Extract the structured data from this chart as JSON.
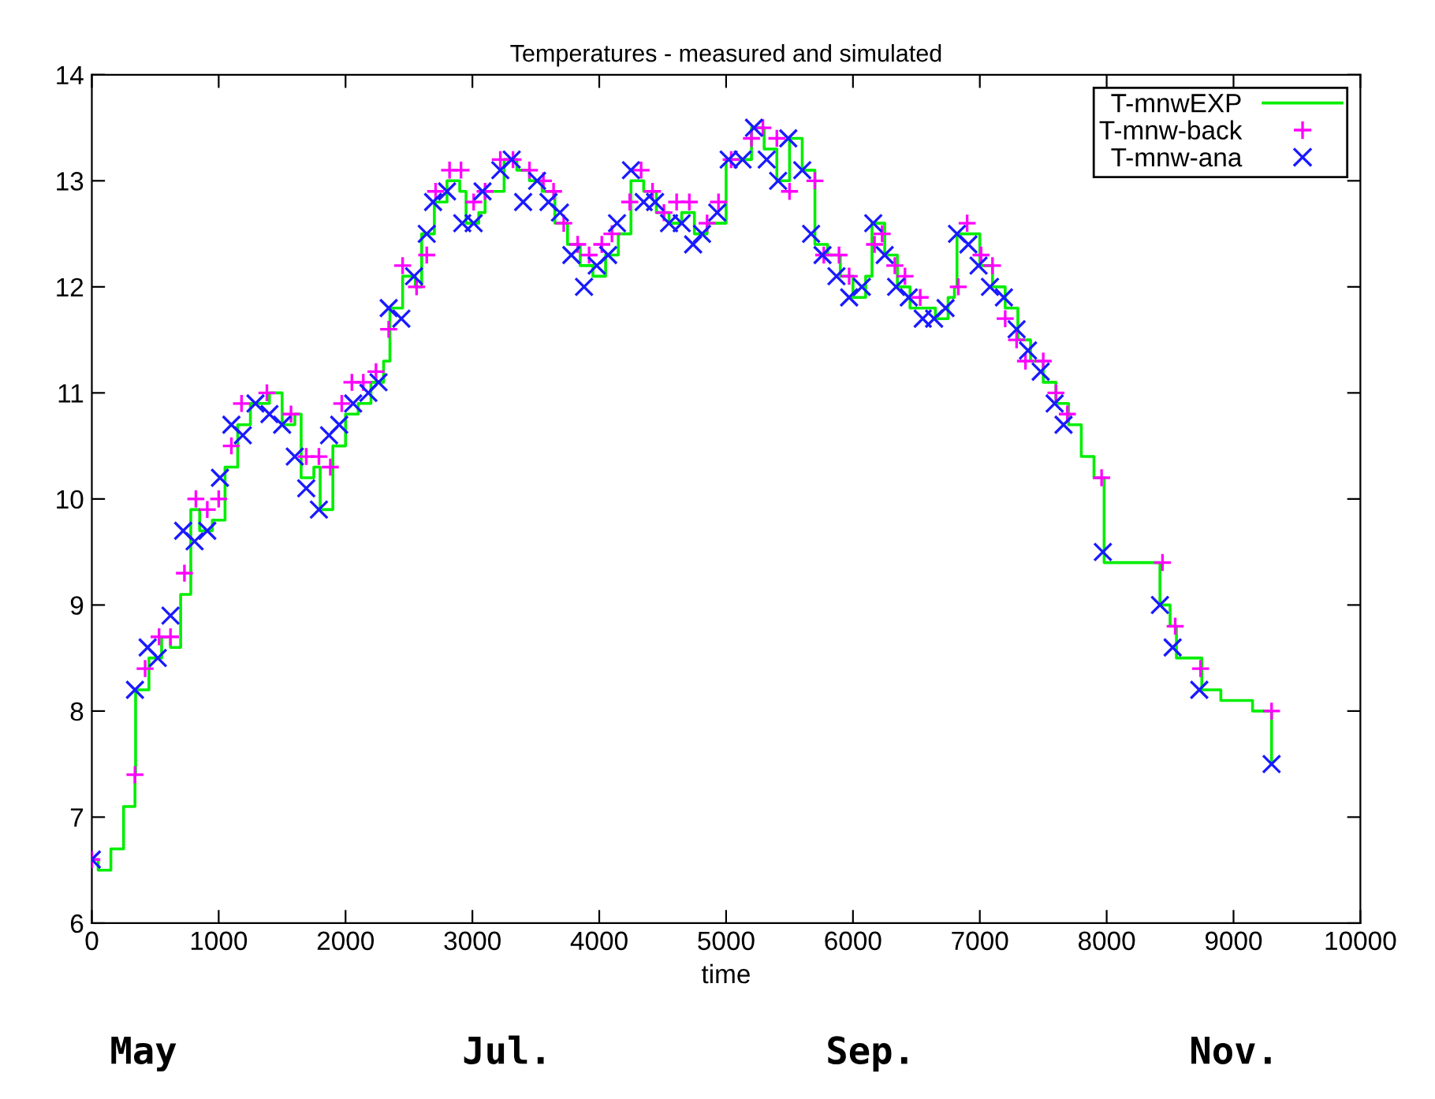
{
  "chart_data": {
    "type": "line",
    "title": "Temperatures - measured and simulated",
    "xlabel": "time",
    "xlim": [
      0,
      10000
    ],
    "xticks": [
      0,
      1000,
      2000,
      3000,
      4000,
      5000,
      6000,
      7000,
      8000,
      9000,
      10000
    ],
    "ylim": [
      6,
      14
    ],
    "yticks": [
      6,
      7,
      8,
      9,
      10,
      11,
      12,
      13,
      14
    ],
    "grid": false,
    "legend": "top right",
    "annotations": [
      "May",
      "Jul.",
      "Sep.",
      "Nov."
    ],
    "series": [
      {
        "name": "T-mnwEXP",
        "type": "step",
        "color": "#00ee00",
        "marker": "none",
        "x": [
          0,
          50,
          100,
          150,
          250,
          340,
          345,
          450,
          550,
          620,
          700,
          780,
          850,
          950,
          1050,
          1150,
          1250,
          1400,
          1500,
          1600,
          1650,
          1750,
          1800,
          1900,
          2000,
          2100,
          2200,
          2300,
          2350,
          2450,
          2550,
          2600,
          2700,
          2800,
          2900,
          2950,
          3050,
          3100,
          3250,
          3350,
          3450,
          3550,
          3650,
          3750,
          3850,
          3950,
          4050,
          4150,
          4250,
          4350,
          4450,
          4550,
          4650,
          4750,
          4850,
          4950,
          5000,
          5150,
          5200,
          5300,
          5400,
          5500,
          5600,
          5700,
          5800,
          5900,
          6000,
          6100,
          6150,
          6250,
          6350,
          6450,
          6550,
          6650,
          6750,
          6800,
          6820,
          6900,
          7000,
          7100,
          7200,
          7300,
          7400,
          7500,
          7600,
          7700,
          7800,
          7900,
          7970,
          7980,
          8200,
          8400,
          8420,
          8500,
          8550,
          8700,
          8750,
          8900,
          9100,
          9150,
          9300,
          9300
        ],
        "values": [
          6.6,
          6.5,
          6.5,
          6.7,
          7.1,
          7.4,
          8.2,
          8.5,
          8.7,
          8.6,
          9.1,
          9.9,
          9.7,
          9.8,
          10.3,
          10.7,
          10.9,
          11.0,
          10.7,
          10.8,
          10.2,
          10.3,
          9.9,
          10.5,
          10.8,
          10.9,
          11.1,
          11.3,
          11.8,
          12.1,
          12.0,
          12.5,
          12.8,
          13.0,
          12.9,
          12.6,
          12.7,
          12.9,
          13.2,
          13.1,
          13.0,
          12.9,
          12.6,
          12.4,
          12.2,
          12.1,
          12.3,
          12.5,
          13.0,
          12.9,
          12.7,
          12.6,
          12.7,
          12.5,
          12.6,
          12.6,
          13.2,
          13.2,
          13.5,
          13.3,
          13.0,
          13.4,
          13.1,
          12.4,
          12.3,
          12.1,
          11.9,
          12.1,
          12.6,
          12.3,
          12.0,
          11.8,
          11.8,
          11.7,
          11.9,
          12.0,
          12.5,
          12.5,
          12.2,
          12.0,
          11.8,
          11.5,
          11.3,
          11.1,
          10.9,
          10.7,
          10.4,
          10.2,
          10.2,
          9.4,
          9.4,
          9.4,
          9.0,
          8.8,
          8.5,
          8.5,
          8.2,
          8.1,
          8.1,
          8.0,
          8.0,
          7.5
        ]
      },
      {
        "name": "T-mnw-back",
        "type": "scatter",
        "color": "#ff00ff",
        "marker": "plus",
        "x": [
          0,
          340,
          420,
          530,
          620,
          730,
          820,
          910,
          1000,
          1100,
          1180,
          1380,
          1570,
          1690,
          1790,
          1880,
          1970,
          2050,
          2140,
          2240,
          2340,
          2450,
          2560,
          2640,
          2710,
          2820,
          2910,
          3010,
          3100,
          3220,
          3320,
          3450,
          3560,
          3640,
          3720,
          3830,
          3920,
          4020,
          4100,
          4240,
          4330,
          4420,
          4510,
          4610,
          4710,
          4850,
          4940,
          5040,
          5200,
          5290,
          5400,
          5500,
          5700,
          5770,
          5890,
          5970,
          6170,
          6230,
          6330,
          6410,
          6530,
          6830,
          6900,
          7010,
          7100,
          7200,
          7290,
          7360,
          7500,
          7600,
          7690,
          7960,
          8440,
          8540,
          8740,
          9300
        ],
        "values": [
          6.6,
          7.4,
          8.4,
          8.7,
          8.7,
          9.3,
          10.0,
          9.9,
          10.0,
          10.5,
          10.9,
          11.0,
          10.8,
          10.4,
          10.4,
          10.3,
          10.9,
          11.1,
          11.1,
          11.2,
          11.6,
          12.2,
          12.0,
          12.3,
          12.9,
          13.1,
          13.1,
          12.8,
          12.9,
          13.2,
          13.2,
          13.1,
          13.0,
          12.9,
          12.6,
          12.4,
          12.3,
          12.4,
          12.5,
          12.8,
          13.1,
          12.9,
          12.7,
          12.8,
          12.8,
          12.6,
          12.8,
          13.2,
          13.4,
          13.5,
          13.4,
          12.9,
          13.0,
          12.3,
          12.3,
          12.1,
          12.4,
          12.5,
          12.2,
          12.1,
          11.9,
          12.0,
          12.6,
          12.3,
          12.2,
          11.7,
          11.5,
          11.3,
          11.3,
          11.0,
          10.8,
          10.2,
          9.4,
          8.8,
          8.4,
          8.0
        ]
      },
      {
        "name": "T-mnw-ana",
        "type": "scatter",
        "color": "#1a1aff",
        "marker": "cross",
        "x": [
          0,
          340,
          440,
          520,
          620,
          720,
          810,
          910,
          1010,
          1100,
          1190,
          1290,
          1400,
          1500,
          1600,
          1690,
          1790,
          1870,
          1950,
          2060,
          2180,
          2260,
          2340,
          2440,
          2540,
          2640,
          2690,
          2800,
          2920,
          3010,
          3080,
          3220,
          3310,
          3400,
          3510,
          3600,
          3690,
          3780,
          3880,
          3980,
          4070,
          4140,
          4250,
          4350,
          4440,
          4550,
          4650,
          4740,
          4810,
          4930,
          5020,
          5130,
          5220,
          5320,
          5410,
          5490,
          5600,
          5670,
          5760,
          5870,
          5970,
          6070,
          6160,
          6250,
          6340,
          6440,
          6550,
          6640,
          6730,
          6820,
          6910,
          6990,
          7080,
          7190,
          7290,
          7380,
          7480,
          7590,
          7660,
          7970,
          8420,
          8520,
          8730,
          9300
        ],
        "values": [
          6.6,
          8.2,
          8.6,
          8.5,
          8.9,
          9.7,
          9.6,
          9.7,
          10.2,
          10.7,
          10.6,
          10.9,
          10.8,
          10.7,
          10.4,
          10.1,
          9.9,
          10.6,
          10.7,
          10.9,
          11.0,
          11.1,
          11.8,
          11.7,
          12.1,
          12.5,
          12.8,
          12.9,
          12.6,
          12.6,
          12.9,
          13.1,
          13.2,
          12.8,
          13.0,
          12.8,
          12.7,
          12.3,
          12.0,
          12.2,
          12.3,
          12.6,
          13.1,
          12.8,
          12.8,
          12.6,
          12.6,
          12.4,
          12.5,
          12.7,
          13.2,
          13.2,
          13.5,
          13.2,
          13.0,
          13.4,
          13.1,
          12.5,
          12.3,
          12.1,
          11.9,
          12.0,
          12.6,
          12.3,
          12.0,
          11.9,
          11.7,
          11.7,
          11.8,
          12.5,
          12.4,
          12.2,
          12.0,
          11.9,
          11.6,
          11.4,
          11.2,
          10.9,
          10.7,
          9.5,
          9.0,
          8.6,
          8.2,
          7.5
        ]
      }
    ]
  }
}
